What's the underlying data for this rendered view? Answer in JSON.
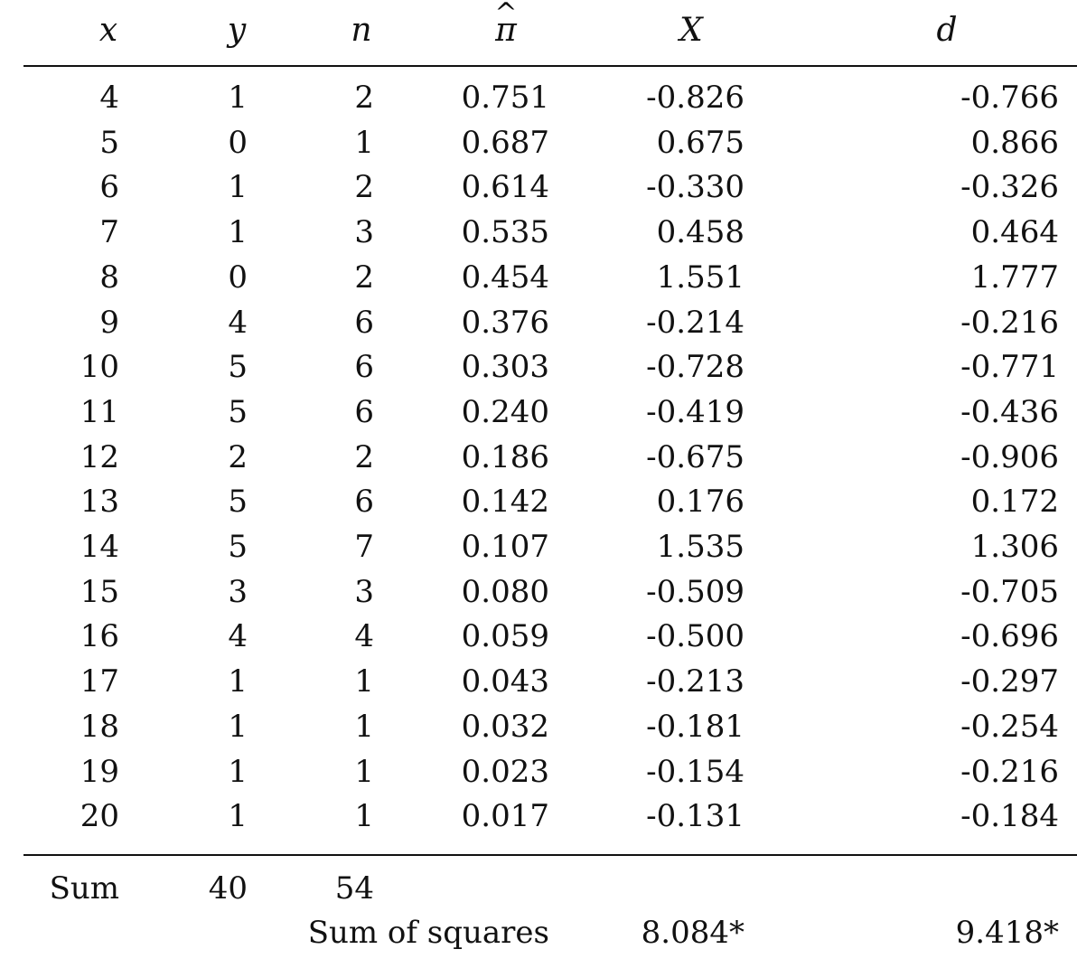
{
  "table": {
    "headers": {
      "x": "x",
      "y": "y",
      "n": "n",
      "pi_hat": "π",
      "pi_hat_accent": "^",
      "X": "X",
      "d": "d"
    },
    "rows": [
      {
        "x": "4",
        "y": "1",
        "n": "2",
        "pi_hat": "0.751",
        "X": "-0.826",
        "d": "-0.766"
      },
      {
        "x": "5",
        "y": "0",
        "n": "1",
        "pi_hat": "0.687",
        "X": "0.675",
        "d": "0.866"
      },
      {
        "x": "6",
        "y": "1",
        "n": "2",
        "pi_hat": "0.614",
        "X": "-0.330",
        "d": "-0.326"
      },
      {
        "x": "7",
        "y": "1",
        "n": "3",
        "pi_hat": "0.535",
        "X": "0.458",
        "d": "0.464"
      },
      {
        "x": "8",
        "y": "0",
        "n": "2",
        "pi_hat": "0.454",
        "X": "1.551",
        "d": "1.777"
      },
      {
        "x": "9",
        "y": "4",
        "n": "6",
        "pi_hat": "0.376",
        "X": "-0.214",
        "d": "-0.216"
      },
      {
        "x": "10",
        "y": "5",
        "n": "6",
        "pi_hat": "0.303",
        "X": "-0.728",
        "d": "-0.771"
      },
      {
        "x": "11",
        "y": "5",
        "n": "6",
        "pi_hat": "0.240",
        "X": "-0.419",
        "d": "-0.436"
      },
      {
        "x": "12",
        "y": "2",
        "n": "2",
        "pi_hat": "0.186",
        "X": "-0.675",
        "d": "-0.906"
      },
      {
        "x": "13",
        "y": "5",
        "n": "6",
        "pi_hat": "0.142",
        "X": "0.176",
        "d": "0.172"
      },
      {
        "x": "14",
        "y": "5",
        "n": "7",
        "pi_hat": "0.107",
        "X": "1.535",
        "d": "1.306"
      },
      {
        "x": "15",
        "y": "3",
        "n": "3",
        "pi_hat": "0.080",
        "X": "-0.509",
        "d": "-0.705"
      },
      {
        "x": "16",
        "y": "4",
        "n": "4",
        "pi_hat": "0.059",
        "X": "-0.500",
        "d": "-0.696"
      },
      {
        "x": "17",
        "y": "1",
        "n": "1",
        "pi_hat": "0.043",
        "X": "-0.213",
        "d": "-0.297"
      },
      {
        "x": "18",
        "y": "1",
        "n": "1",
        "pi_hat": "0.032",
        "X": "-0.181",
        "d": "-0.254"
      },
      {
        "x": "19",
        "y": "1",
        "n": "1",
        "pi_hat": "0.023",
        "X": "-0.154",
        "d": "-0.216"
      },
      {
        "x": "20",
        "y": "1",
        "n": "1",
        "pi_hat": "0.017",
        "X": "-0.131",
        "d": "-0.184"
      }
    ],
    "summary": {
      "sum_label": "Sum",
      "sum_y": "40",
      "sum_n": "54",
      "ss_label": "Sum of squares",
      "ss_X": "8.084*",
      "ss_d": "9.418*"
    }
  }
}
